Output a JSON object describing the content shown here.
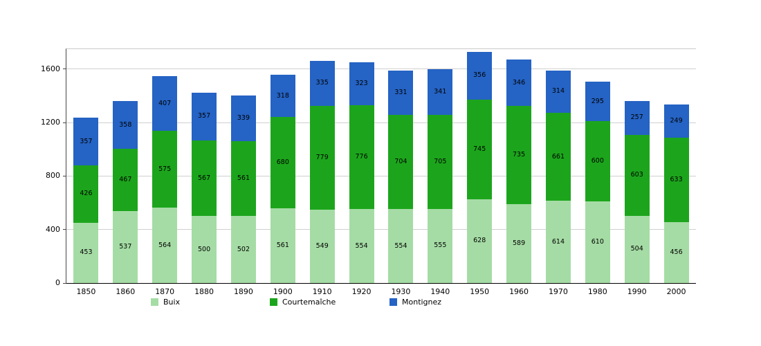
{
  "chart_data": {
    "type": "bar",
    "stacked": true,
    "title": "",
    "xlabel": "",
    "ylabel": "",
    "categories": [
      "1850",
      "1860",
      "1870",
      "1880",
      "1890",
      "1900",
      "1910",
      "1920",
      "1930",
      "1940",
      "1950",
      "1960",
      "1970",
      "1980",
      "1990",
      "2000"
    ],
    "series": [
      {
        "name": "Buix",
        "color": "#a5dca5",
        "values": [
          453,
          537,
          564,
          500,
          502,
          561,
          549,
          554,
          554,
          555,
          628,
          589,
          614,
          610,
          504,
          456
        ]
      },
      {
        "name": "Courtemaîche",
        "color": "#1ca51c",
        "values": [
          426,
          467,
          575,
          567,
          561,
          680,
          779,
          776,
          704,
          705,
          745,
          735,
          661,
          600,
          603,
          633
        ]
      },
      {
        "name": "Montignez",
        "color": "#2563c4",
        "values": [
          357,
          358,
          407,
          357,
          339,
          318,
          335,
          323,
          331,
          341,
          356,
          346,
          314,
          295,
          257,
          249
        ]
      }
    ],
    "ylim": [
      0,
      1750
    ],
    "yticks": [
      0,
      400,
      800,
      1200,
      1600
    ],
    "grid": true,
    "legend_position": "bottom"
  }
}
